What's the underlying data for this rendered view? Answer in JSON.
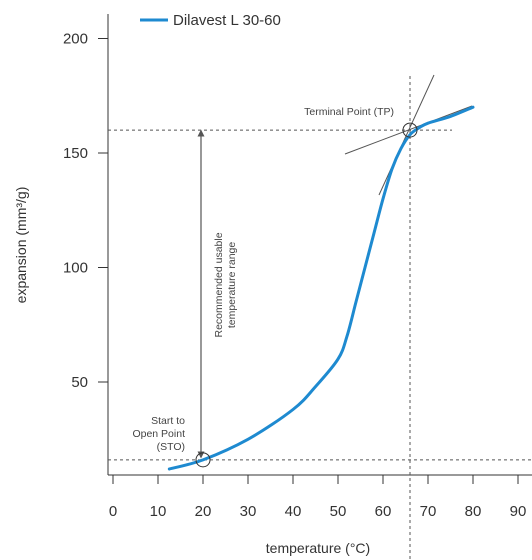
{
  "chart_data": {
    "type": "line",
    "title": "",
    "xlabel": "temperature (°C)",
    "ylabel": "expansion (mm³/g)",
    "xlim": [
      0,
      95
    ],
    "ylim": [
      10,
      210
    ],
    "x_ticks": [
      0,
      10,
      20,
      30,
      40,
      50,
      60,
      70,
      80,
      90
    ],
    "y_ticks": [
      50,
      100,
      150,
      200
    ],
    "grid": false,
    "legend": {
      "position": "top-left",
      "entries": [
        "Dilavest L 30-60"
      ]
    },
    "colors": {
      "series": "#1e8ad0",
      "reference": "#555555",
      "axis": "#333333"
    },
    "series": [
      {
        "name": "Dilavest L 30-60",
        "x": [
          12.5,
          20,
          30,
          40,
          45,
          50,
          52,
          54,
          56,
          58,
          60,
          62,
          64,
          66,
          68,
          70,
          75,
          80
        ],
        "y": [
          12,
          16,
          25,
          38,
          48,
          60,
          70,
          85,
          100,
          115,
          130,
          143,
          152,
          158,
          161,
          163,
          166,
          170
        ]
      }
    ],
    "annotations": {
      "sto": {
        "lines": [
          "Start to",
          "Open Point",
          "(STO)"
        ],
        "x": 20,
        "y": 16
      },
      "tp": {
        "text": "Terminal Point (TP)",
        "x": 66,
        "y": 160
      },
      "range": {
        "lines": [
          "Recommended usable",
          "temperature range"
        ],
        "from_y": 16,
        "to_y": 160,
        "x": 20
      }
    }
  }
}
